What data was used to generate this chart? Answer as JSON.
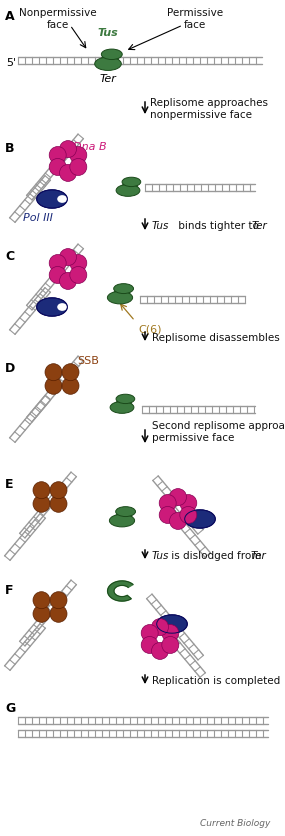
{
  "fig_width": 2.85,
  "fig_height": 8.37,
  "dpi": 100,
  "bg_color": "#ffffff",
  "colors": {
    "dna_edge": "#999999",
    "tus_green": "#3d7a40",
    "tus_mid": "#4d8f50",
    "dnab_magenta": "#cc1a7a",
    "poliii_blue": "#1c2b7a",
    "ssb_brown": "#8B4010",
    "c6_gold": "#a07820",
    "arrow_color": "#333333",
    "label_black": "#111111",
    "footer_gray": "#666666"
  },
  "transition_texts": [
    "Replisome approaches\nnonpermissive face",
    "Tus binds tighter to  Ter",
    "Replisome disassembles",
    "Second replisome approaches\npermissive face",
    "Tus is dislodged from  Ter",
    "Replication is completed"
  ],
  "footer": "Current Biology",
  "panel_labels": [
    "A",
    "B",
    "C",
    "D",
    "E",
    "F",
    "G"
  ]
}
